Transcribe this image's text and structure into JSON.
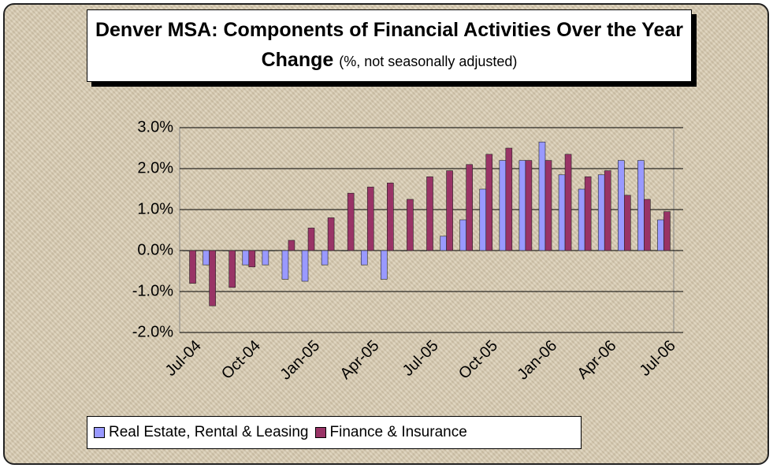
{
  "chart_data": {
    "type": "bar",
    "title": "Denver MSA: Components of Financial Activities Over the Year Change",
    "subtitle": "(%, not seasonally adjusted)",
    "categories": [
      "Jul-04",
      null,
      null,
      "Oct-04",
      null,
      null,
      "Jan-05",
      null,
      null,
      "Apr-05",
      null,
      null,
      "Jul-05",
      null,
      null,
      "Oct-05",
      null,
      null,
      "Jan-06",
      null,
      null,
      "Apr-06",
      null,
      null,
      "Jul-06"
    ],
    "series": [
      {
        "name": "Real Estate, Rental & Leasing",
        "color": "#9999ff",
        "values": [
          0,
          -0.35,
          0,
          -0.35,
          -0.35,
          -0.7,
          -0.75,
          -0.35,
          0,
          -0.35,
          -0.7,
          0,
          0,
          0.35,
          0.75,
          1.5,
          2.2,
          2.2,
          2.65,
          1.85,
          1.5,
          1.85,
          2.2,
          2.2,
          0.75
        ]
      },
      {
        "name": "Finance & Insurance",
        "color": "#993366",
        "values": [
          -0.8,
          -1.35,
          -0.9,
          -0.4,
          0,
          0.25,
          0.55,
          0.8,
          1.4,
          1.55,
          1.65,
          1.25,
          1.8,
          1.95,
          2.1,
          2.35,
          2.5,
          2.2,
          2.2,
          2.35,
          1.8,
          1.95,
          1.35,
          1.25,
          0.95
        ]
      }
    ],
    "ylim": [
      -2,
      3
    ],
    "yticks": [
      {
        "value": -2,
        "label": "-2.0%"
      },
      {
        "value": -1,
        "label": "-1.0%"
      },
      {
        "value": 0,
        "label": "0.0%"
      },
      {
        "value": 1,
        "label": "1.0%"
      },
      {
        "value": 2,
        "label": "2.0%"
      },
      {
        "value": 3,
        "label": "3.0%"
      }
    ],
    "grid": true
  }
}
